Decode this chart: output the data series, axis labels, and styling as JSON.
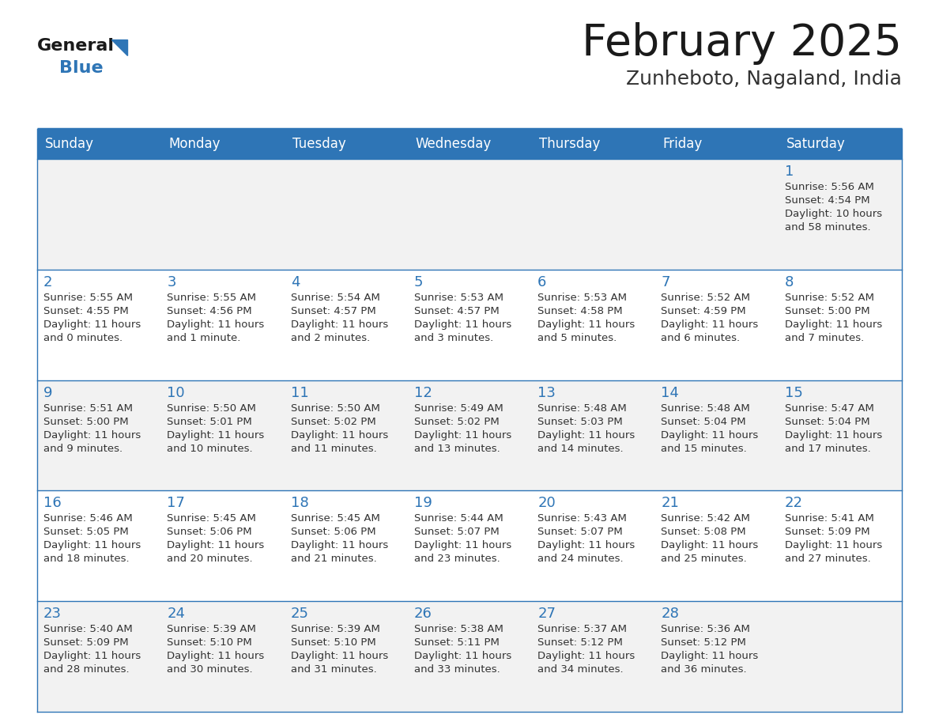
{
  "title": "February 2025",
  "subtitle": "Zunheboto, Nagaland, India",
  "header_bg": "#2E75B6",
  "header_text_color": "#FFFFFF",
  "cell_bg_odd": "#F2F2F2",
  "cell_bg_even": "#FFFFFF",
  "border_color": "#2E75B6",
  "day_names": [
    "Sunday",
    "Monday",
    "Tuesday",
    "Wednesday",
    "Thursday",
    "Friday",
    "Saturday"
  ],
  "title_color": "#1a1a1a",
  "subtitle_color": "#333333",
  "day_number_color": "#2E75B6",
  "info_color": "#333333",
  "logo_general_color": "#1a1a1a",
  "logo_blue_color": "#2E75B6",
  "logo_triangle_color": "#2E75B6",
  "days": [
    {
      "day": 1,
      "col": 6,
      "row": 0,
      "sunrise": "5:56 AM",
      "sunset": "4:54 PM",
      "daylight_h": "10 hours",
      "daylight_m": "and 58 minutes."
    },
    {
      "day": 2,
      "col": 0,
      "row": 1,
      "sunrise": "5:55 AM",
      "sunset": "4:55 PM",
      "daylight_h": "11 hours",
      "daylight_m": "and 0 minutes."
    },
    {
      "day": 3,
      "col": 1,
      "row": 1,
      "sunrise": "5:55 AM",
      "sunset": "4:56 PM",
      "daylight_h": "11 hours",
      "daylight_m": "and 1 minute."
    },
    {
      "day": 4,
      "col": 2,
      "row": 1,
      "sunrise": "5:54 AM",
      "sunset": "4:57 PM",
      "daylight_h": "11 hours",
      "daylight_m": "and 2 minutes."
    },
    {
      "day": 5,
      "col": 3,
      "row": 1,
      "sunrise": "5:53 AM",
      "sunset": "4:57 PM",
      "daylight_h": "11 hours",
      "daylight_m": "and 3 minutes."
    },
    {
      "day": 6,
      "col": 4,
      "row": 1,
      "sunrise": "5:53 AM",
      "sunset": "4:58 PM",
      "daylight_h": "11 hours",
      "daylight_m": "and 5 minutes."
    },
    {
      "day": 7,
      "col": 5,
      "row": 1,
      "sunrise": "5:52 AM",
      "sunset": "4:59 PM",
      "daylight_h": "11 hours",
      "daylight_m": "and 6 minutes."
    },
    {
      "day": 8,
      "col": 6,
      "row": 1,
      "sunrise": "5:52 AM",
      "sunset": "5:00 PM",
      "daylight_h": "11 hours",
      "daylight_m": "and 7 minutes."
    },
    {
      "day": 9,
      "col": 0,
      "row": 2,
      "sunrise": "5:51 AM",
      "sunset": "5:00 PM",
      "daylight_h": "11 hours",
      "daylight_m": "and 9 minutes."
    },
    {
      "day": 10,
      "col": 1,
      "row": 2,
      "sunrise": "5:50 AM",
      "sunset": "5:01 PM",
      "daylight_h": "11 hours",
      "daylight_m": "and 10 minutes."
    },
    {
      "day": 11,
      "col": 2,
      "row": 2,
      "sunrise": "5:50 AM",
      "sunset": "5:02 PM",
      "daylight_h": "11 hours",
      "daylight_m": "and 11 minutes."
    },
    {
      "day": 12,
      "col": 3,
      "row": 2,
      "sunrise": "5:49 AM",
      "sunset": "5:02 PM",
      "daylight_h": "11 hours",
      "daylight_m": "and 13 minutes."
    },
    {
      "day": 13,
      "col": 4,
      "row": 2,
      "sunrise": "5:48 AM",
      "sunset": "5:03 PM",
      "daylight_h": "11 hours",
      "daylight_m": "and 14 minutes."
    },
    {
      "day": 14,
      "col": 5,
      "row": 2,
      "sunrise": "5:48 AM",
      "sunset": "5:04 PM",
      "daylight_h": "11 hours",
      "daylight_m": "and 15 minutes."
    },
    {
      "day": 15,
      "col": 6,
      "row": 2,
      "sunrise": "5:47 AM",
      "sunset": "5:04 PM",
      "daylight_h": "11 hours",
      "daylight_m": "and 17 minutes."
    },
    {
      "day": 16,
      "col": 0,
      "row": 3,
      "sunrise": "5:46 AM",
      "sunset": "5:05 PM",
      "daylight_h": "11 hours",
      "daylight_m": "and 18 minutes."
    },
    {
      "day": 17,
      "col": 1,
      "row": 3,
      "sunrise": "5:45 AM",
      "sunset": "5:06 PM",
      "daylight_h": "11 hours",
      "daylight_m": "and 20 minutes."
    },
    {
      "day": 18,
      "col": 2,
      "row": 3,
      "sunrise": "5:45 AM",
      "sunset": "5:06 PM",
      "daylight_h": "11 hours",
      "daylight_m": "and 21 minutes."
    },
    {
      "day": 19,
      "col": 3,
      "row": 3,
      "sunrise": "5:44 AM",
      "sunset": "5:07 PM",
      "daylight_h": "11 hours",
      "daylight_m": "and 23 minutes."
    },
    {
      "day": 20,
      "col": 4,
      "row": 3,
      "sunrise": "5:43 AM",
      "sunset": "5:07 PM",
      "daylight_h": "11 hours",
      "daylight_m": "and 24 minutes."
    },
    {
      "day": 21,
      "col": 5,
      "row": 3,
      "sunrise": "5:42 AM",
      "sunset": "5:08 PM",
      "daylight_h": "11 hours",
      "daylight_m": "and 25 minutes."
    },
    {
      "day": 22,
      "col": 6,
      "row": 3,
      "sunrise": "5:41 AM",
      "sunset": "5:09 PM",
      "daylight_h": "11 hours",
      "daylight_m": "and 27 minutes."
    },
    {
      "day": 23,
      "col": 0,
      "row": 4,
      "sunrise": "5:40 AM",
      "sunset": "5:09 PM",
      "daylight_h": "11 hours",
      "daylight_m": "and 28 minutes."
    },
    {
      "day": 24,
      "col": 1,
      "row": 4,
      "sunrise": "5:39 AM",
      "sunset": "5:10 PM",
      "daylight_h": "11 hours",
      "daylight_m": "and 30 minutes."
    },
    {
      "day": 25,
      "col": 2,
      "row": 4,
      "sunrise": "5:39 AM",
      "sunset": "5:10 PM",
      "daylight_h": "11 hours",
      "daylight_m": "and 31 minutes."
    },
    {
      "day": 26,
      "col": 3,
      "row": 4,
      "sunrise": "5:38 AM",
      "sunset": "5:11 PM",
      "daylight_h": "11 hours",
      "daylight_m": "and 33 minutes."
    },
    {
      "day": 27,
      "col": 4,
      "row": 4,
      "sunrise": "5:37 AM",
      "sunset": "5:12 PM",
      "daylight_h": "11 hours",
      "daylight_m": "and 34 minutes."
    },
    {
      "day": 28,
      "col": 5,
      "row": 4,
      "sunrise": "5:36 AM",
      "sunset": "5:12 PM",
      "daylight_h": "11 hours",
      "daylight_m": "and 36 minutes."
    }
  ]
}
